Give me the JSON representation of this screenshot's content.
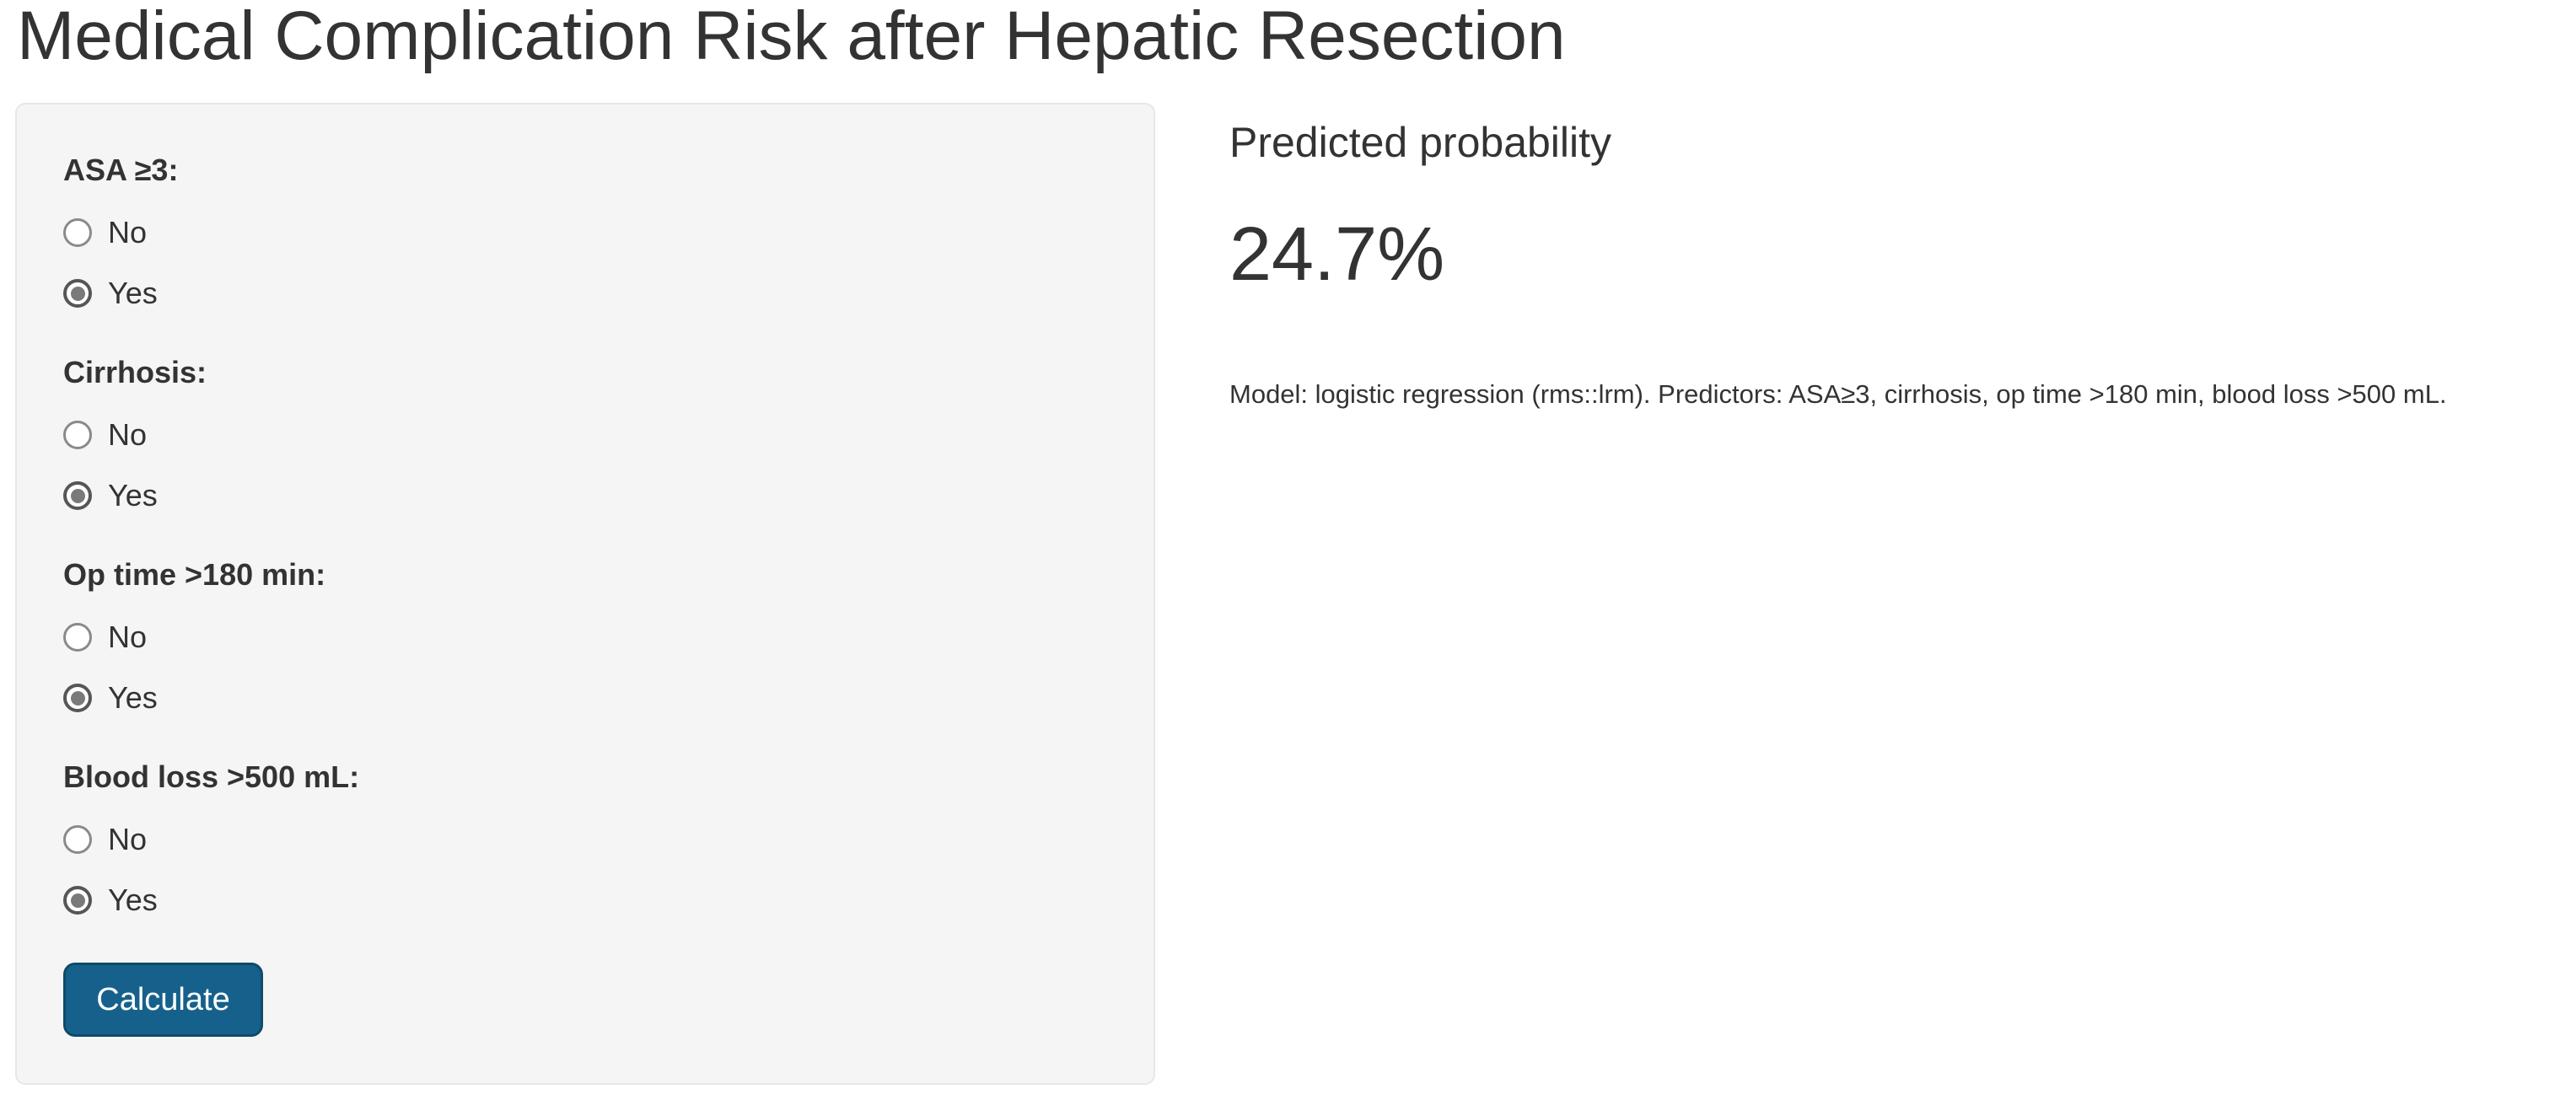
{
  "page": {
    "title": "Medical Complication Risk after Hepatic Resection"
  },
  "form": {
    "groups": [
      {
        "label": "ASA ≥3:",
        "options": [
          {
            "label": "No",
            "selected": false
          },
          {
            "label": "Yes",
            "selected": true
          }
        ]
      },
      {
        "label": "Cirrhosis:",
        "options": [
          {
            "label": "No",
            "selected": false
          },
          {
            "label": "Yes",
            "selected": true
          }
        ]
      },
      {
        "label": "Op time >180 min:",
        "options": [
          {
            "label": "No",
            "selected": false
          },
          {
            "label": "Yes",
            "selected": true
          }
        ]
      },
      {
        "label": "Blood loss >500 mL:",
        "options": [
          {
            "label": "No",
            "selected": false
          },
          {
            "label": "Yes",
            "selected": true
          }
        ]
      }
    ],
    "calculate_label": "Calculate"
  },
  "result": {
    "heading": "Predicted probability",
    "value": "24.7%",
    "model_note": "Model: logistic regression (rms::lrm). Predictors: ASA≥3, cirrhosis, op time >180 min, blood loss >500 mL."
  },
  "colors": {
    "panel_background": "#f5f5f5",
    "panel_border": "#e7e7e7",
    "button_background": "#16618c",
    "button_border": "#0f4a6b",
    "button_text": "#ffffff",
    "text": "#333333",
    "radio_ring": "#8a8a8a",
    "radio_checked_ring": "#565656",
    "radio_checked_dot": "#7a7a7a"
  }
}
